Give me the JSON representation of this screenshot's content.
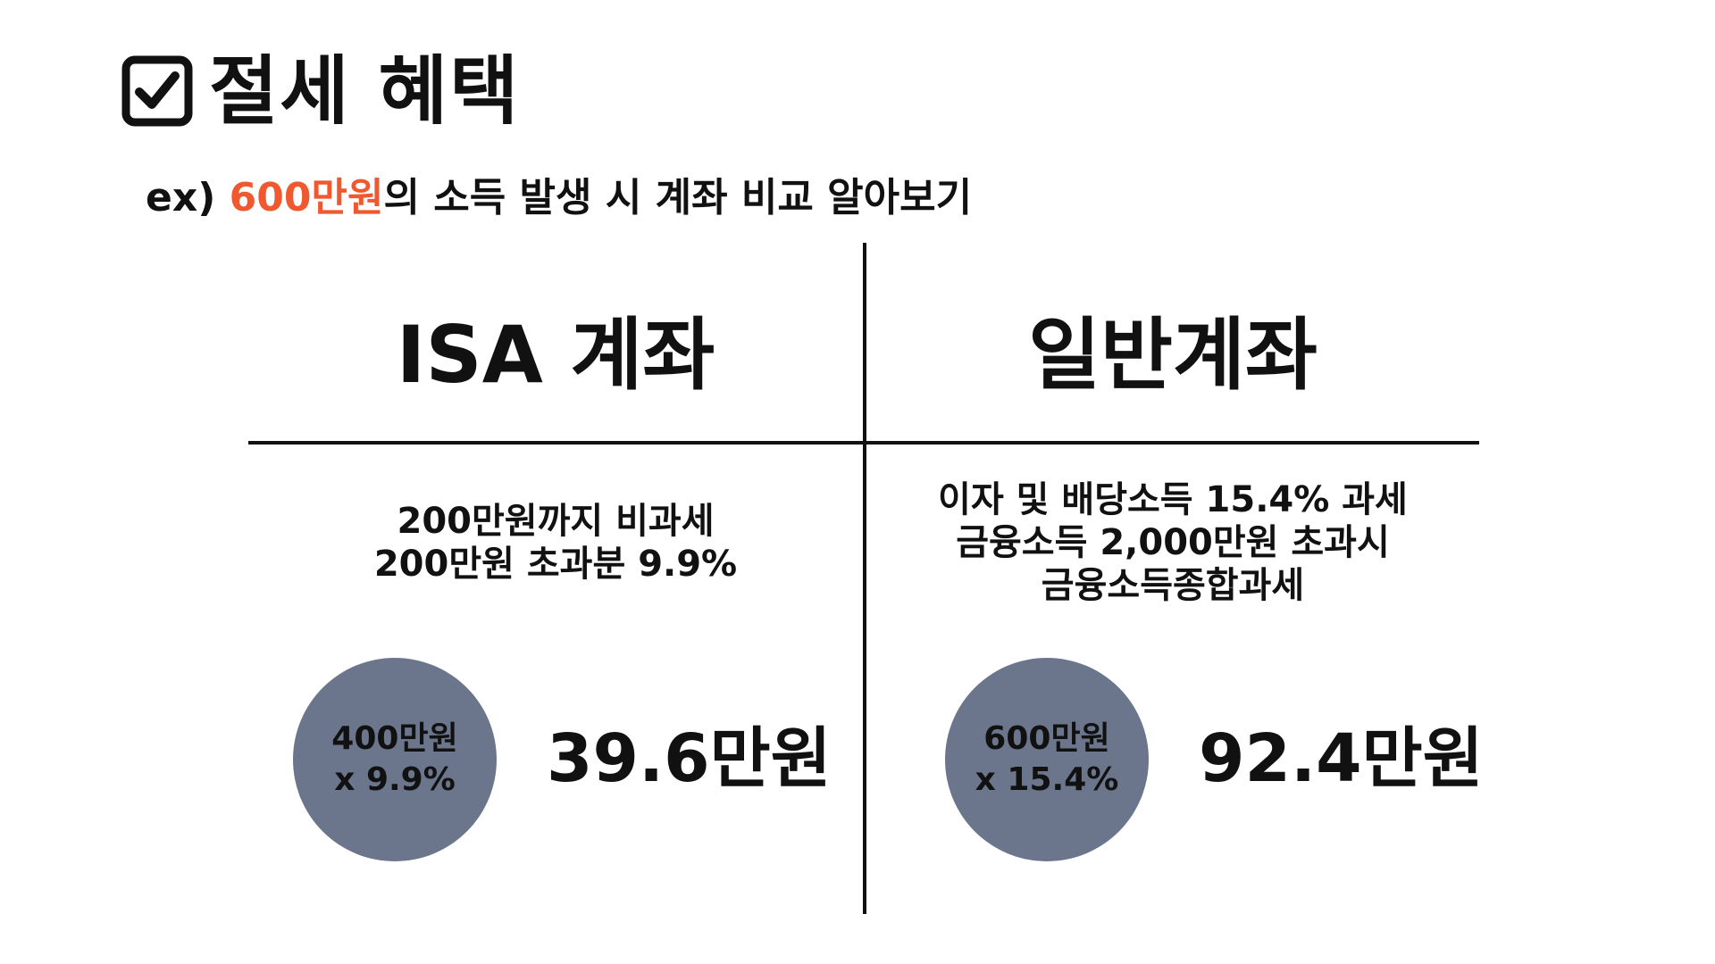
{
  "title": {
    "icon": "checkbox-checked-icon",
    "text": "절세 혜택"
  },
  "subtitle": {
    "prefix": "ex) ",
    "highlight": "600만원",
    "suffix": "의 소득 발생 시 계좌 비교 알아보기",
    "highlight_color": "#f0582f"
  },
  "isa": {
    "heading": "ISA 계좌",
    "desc_lines": [
      "200만원까지 비과세",
      "200만원 초과분 9.9%"
    ],
    "calc_lines": [
      "400만원",
      "x 9.9%"
    ],
    "result": "39.6만원"
  },
  "general": {
    "heading": "일반계좌",
    "desc_lines": [
      "이자 및 배당소득 15.4% 과세",
      "금융소득 2,000만원 초과시",
      "금융소득종합과세"
    ],
    "calc_lines": [
      "600만원",
      "x 15.4%"
    ],
    "result": "92.4만원"
  },
  "colors": {
    "circle_fill": "#6b768c",
    "text": "#111111",
    "background": "#ffffff"
  }
}
